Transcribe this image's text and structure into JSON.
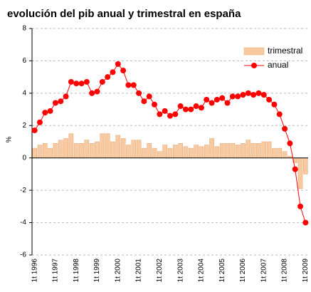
{
  "chart_data": {
    "type": "bar_line",
    "title": "evolución del pib anual y trimestral en españa",
    "y_label": "%",
    "categories": [
      "1t 1996",
      null,
      null,
      null,
      "1t 1997",
      null,
      null,
      null,
      "1t 1998",
      null,
      null,
      null,
      "1t 1999",
      null,
      null,
      null,
      "1t 2000",
      null,
      null,
      null,
      "1t 2001",
      null,
      null,
      null,
      "1t 2002",
      null,
      null,
      null,
      "1t 2003",
      null,
      null,
      null,
      "1t 2004",
      null,
      null,
      null,
      "1t 2005",
      null,
      null,
      null,
      "1t 2006",
      null,
      null,
      null,
      "1t 2007",
      null,
      null,
      null,
      "1t 2008",
      null,
      null,
      null,
      "1t 2009"
    ],
    "series": [
      {
        "name": "trimestral",
        "type": "bar",
        "color": "#f9c9a0",
        "values": [
          0.6,
          0.8,
          0.9,
          0.6,
          0.9,
          1.1,
          1.2,
          1.5,
          0.9,
          0.9,
          1.1,
          0.9,
          1.0,
          1.5,
          1.5,
          1.0,
          1.4,
          1.2,
          0.8,
          1.1,
          1.1,
          0.6,
          0.9,
          0.6,
          0.4,
          0.8,
          0.6,
          0.8,
          0.9,
          0.7,
          0.6,
          0.8,
          0.7,
          0.8,
          1.2,
          0.7,
          0.9,
          0.9,
          0.9,
          0.8,
          0.9,
          1.1,
          0.9,
          0.9,
          1.0,
          1.0,
          0.6,
          0.6,
          0.4,
          0.1,
          -0.3,
          -1.9,
          -1.0
        ]
      },
      {
        "name": "anual",
        "type": "line",
        "color": "#ff0000",
        "values": [
          1.7,
          2.2,
          2.8,
          2.9,
          3.4,
          3.5,
          3.8,
          4.7,
          4.6,
          4.6,
          4.7,
          4.0,
          4.1,
          4.7,
          5.0,
          5.3,
          5.8,
          5.4,
          4.5,
          4.5,
          4.0,
          3.5,
          3.8,
          3.3,
          2.7,
          2.9,
          2.6,
          2.7,
          3.2,
          3.0,
          3.0,
          3.2,
          3.1,
          3.6,
          3.4,
          3.6,
          3.7,
          3.4,
          3.8,
          3.8,
          3.9,
          4.0,
          3.9,
          4.0,
          3.9,
          3.6,
          3.3,
          2.7,
          1.8,
          0.9,
          -0.7,
          -3.0,
          -4.0
        ]
      }
    ],
    "ylim": [
      -6,
      8
    ],
    "yticks": [
      -6,
      -4,
      -2,
      0,
      2,
      4,
      6,
      8
    ],
    "grid": true,
    "legend": "top-right"
  }
}
